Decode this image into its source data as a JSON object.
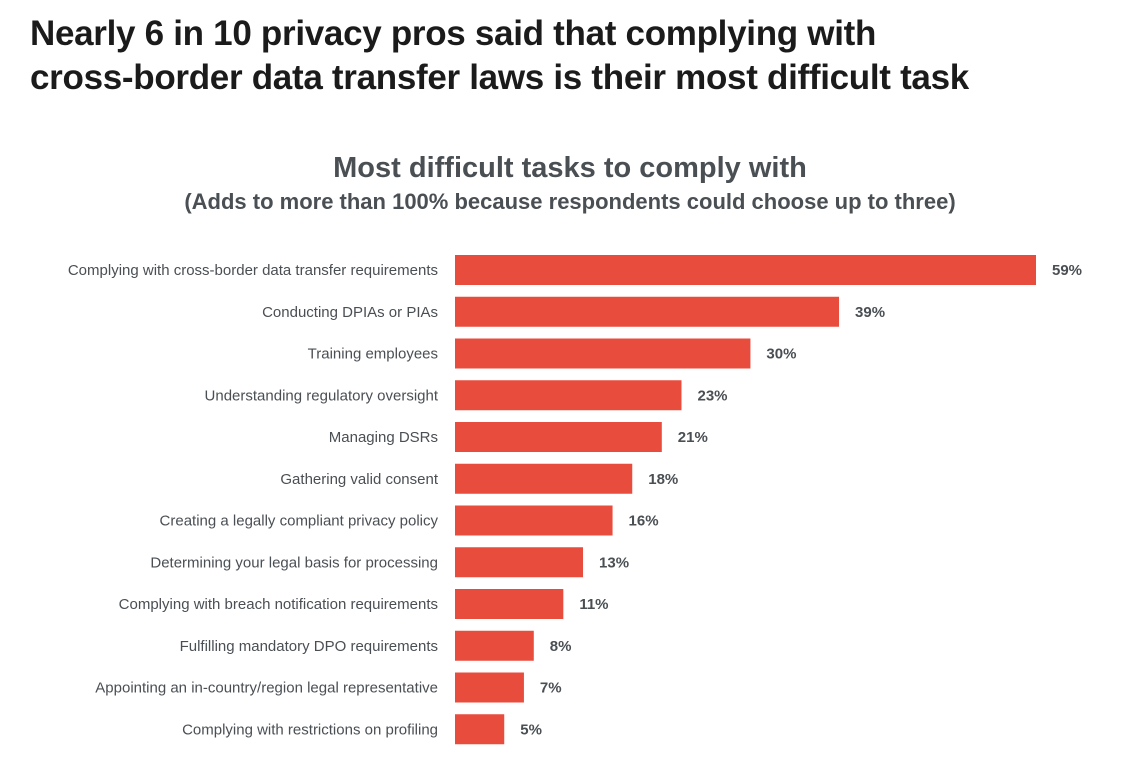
{
  "headline": "Nearly 6 in 10 privacy pros said that complying with cross-border data transfer laws is their most difficult task",
  "headline_lines": [
    "Nearly 6 in 10 privacy pros said that complying with",
    "cross-border data transfer laws is their most difficult task"
  ],
  "chart_data": {
    "type": "bar",
    "orientation": "horizontal",
    "title": "Most difficult tasks to comply with",
    "subtitle": "(Adds to more than 100% because respondents could choose up to three)",
    "categories": [
      "Complying with cross-border data transfer requirements",
      "Conducting DPIAs or PIAs",
      "Training employees",
      "Understanding regulatory oversight",
      "Managing DSRs",
      "Gathering valid consent",
      "Creating a legally compliant privacy policy",
      "Determining your legal basis for processing",
      "Complying with breach notification requirements",
      "Fulfilling mandatory DPO requirements",
      "Appointing an in-country/region legal representative",
      "Complying with restrictions on profiling"
    ],
    "values": [
      59,
      39,
      30,
      23,
      21,
      18,
      16,
      13,
      11,
      8,
      7,
      5
    ],
    "value_labels": [
      "59%",
      "39%",
      "30%",
      "23%",
      "21%",
      "18%",
      "16%",
      "13%",
      "11%",
      "8%",
      "7%",
      "5%"
    ],
    "unit": "%",
    "xlim": [
      0,
      59
    ],
    "grid": false,
    "bar_color": "#E84C3D"
  }
}
